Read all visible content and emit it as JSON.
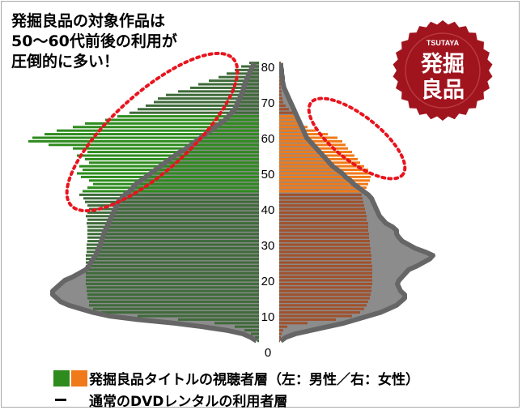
{
  "headline": {
    "line1": "発掘良品の対象作品は",
    "line2": "50～60代前後の利用が",
    "line3": "圧倒的に多い！"
  },
  "badge": {
    "brand": "TSUTAYA",
    "line1": "発掘",
    "line2": "良品",
    "color": "#a0141e"
  },
  "legend": {
    "series_label": "発掘良品タイトルの視聴者層（左：男性／右：女性）",
    "outline_label": "通常のDVDレンタルの利用者層",
    "male_color": "#2e8b1e",
    "female_color": "#f07a1a",
    "outline_color": "#666666"
  },
  "chart_data": {
    "type": "bar",
    "orientation": "population-pyramid",
    "y_axis_ticks": [
      "0",
      "10",
      "20",
      "30",
      "40",
      "50",
      "60",
      "70",
      "80"
    ],
    "ylim": [
      0,
      82
    ],
    "ages": [
      3,
      4,
      5,
      6,
      7,
      8,
      9,
      10,
      11,
      12,
      13,
      14,
      15,
      16,
      17,
      18,
      19,
      20,
      21,
      22,
      23,
      24,
      25,
      26,
      27,
      28,
      29,
      30,
      31,
      32,
      33,
      34,
      35,
      36,
      37,
      38,
      39,
      40,
      41,
      42,
      43,
      44,
      45,
      46,
      47,
      48,
      49,
      50,
      51,
      52,
      53,
      54,
      55,
      56,
      57,
      58,
      59,
      60,
      61,
      62,
      63,
      64,
      65,
      66,
      67,
      68,
      69,
      70,
      71,
      72,
      73,
      74,
      75,
      76,
      77,
      78,
      79,
      80,
      81
    ],
    "series": [
      {
        "name": "男性",
        "side": "left",
        "values": [
          2,
          5,
          10,
          18,
          30,
          55,
          100,
          150,
          195,
          205,
          210,
          210,
          212,
          212,
          213,
          213,
          214,
          214,
          214,
          214,
          214,
          214,
          214,
          214,
          214,
          213,
          213,
          213,
          212,
          212,
          212,
          212,
          212,
          213,
          212,
          214,
          212,
          210,
          212,
          215,
          217,
          222,
          218,
          212,
          205,
          210,
          220,
          225,
          218,
          222,
          210,
          215,
          225,
          212,
          230,
          260,
          285,
          280,
          265,
          250,
          230,
          215,
          190,
          175,
          160,
          150,
          140,
          130,
          125,
          115,
          100,
          85,
          75,
          62,
          50,
          40,
          30,
          22,
          12
        ]
      },
      {
        "name": "女性",
        "side": "right",
        "values": [
          1,
          2,
          3,
          5,
          10,
          35,
          70,
          90,
          100,
          105,
          108,
          110,
          112,
          113,
          114,
          114,
          115,
          115,
          115,
          115,
          115,
          115,
          114,
          114,
          114,
          113,
          113,
          112,
          112,
          111,
          111,
          110,
          110,
          110,
          108,
          108,
          107,
          106,
          105,
          104,
          103,
          102,
          104,
          108,
          110,
          112,
          113,
          112,
          110,
          105,
          100,
          97,
          93,
          90,
          85,
          82,
          78,
          72,
          60,
          45,
          35,
          25,
          22,
          20,
          18,
          12,
          8,
          5,
          4,
          3,
          3,
          2,
          2,
          2,
          2,
          2,
          2,
          2,
          2
        ]
      },
      {
        "name": "通常のDVDレンタルの利用者層",
        "type": "outline",
        "left_values": [
          3,
          10,
          20,
          40,
          70,
          105,
          150,
          185,
          205,
          220,
          235,
          245,
          250,
          255,
          255,
          250,
          245,
          240,
          230,
          222,
          214,
          210,
          208,
          205,
          202,
          200,
          198,
          196,
          195,
          193,
          192,
          190,
          188,
          186,
          184,
          182,
          180,
          178,
          176,
          174,
          170,
          166,
          160,
          156,
          152,
          146,
          140,
          134,
          128,
          122,
          116,
          110,
          104,
          98,
          90,
          84,
          78,
          72,
          66,
          60,
          54,
          48,
          42,
          38,
          34,
          30,
          28,
          26,
          24,
          22,
          20,
          19,
          18,
          16,
          14,
          12,
          10,
          8,
          6
        ],
        "right_values": [
          2,
          8,
          20,
          40,
          60,
          80,
          95,
          110,
          125,
          135,
          145,
          150,
          155,
          155,
          150,
          148,
          146,
          148,
          152,
          156,
          160,
          170,
          178,
          186,
          190,
          180,
          168,
          160,
          152,
          148,
          145,
          145,
          140,
          132,
          128,
          124,
          122,
          120,
          118,
          116,
          114,
          110,
          104,
          98,
          92,
          88,
          82,
          78,
          72,
          66,
          62,
          58,
          54,
          50,
          46,
          42,
          38,
          34,
          32,
          30,
          28,
          26,
          24,
          22,
          20,
          18,
          16,
          14,
          12,
          10,
          8,
          6,
          5,
          4,
          4,
          3,
          3,
          2,
          2
        ]
      }
    ]
  }
}
